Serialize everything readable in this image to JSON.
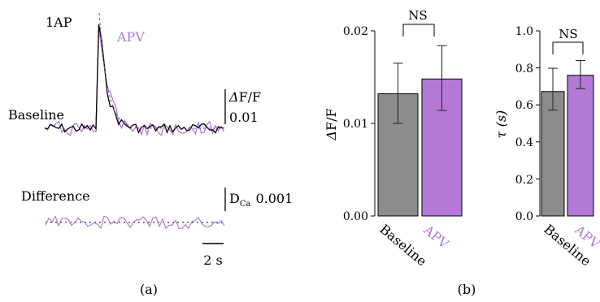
{
  "colors": {
    "baseline": "#000000",
    "apv": "#b27ad6",
    "bar_baseline": "#8c8c8c",
    "bar_apv": "#b27ad6"
  },
  "panel_a": {
    "label": "(a)",
    "trace_title": "1AP",
    "apv_label": "APV",
    "baseline_label": "Baseline",
    "difference_label": "Difference",
    "df_scale": {
      "prefix": "Δ",
      "text": "F/F",
      "value": "0.01"
    },
    "dca_scale": {
      "main": "D",
      "sub": "Ca",
      "value": "0.001"
    },
    "time_scale": "2 s"
  },
  "panel_b": {
    "label": "(b)"
  },
  "chart_data": [
    {
      "type": "bar",
      "ylabel_prefix": "Δ",
      "ylabel": "F/F",
      "categories": [
        "Baseline",
        "APV"
      ],
      "values": [
        0.0132,
        0.0148
      ],
      "errors": [
        [
          0.01,
          0.0165
        ],
        [
          0.0114,
          0.0184
        ]
      ],
      "ylim": [
        0,
        0.02
      ],
      "ticks": [
        "0.00",
        "0.01",
        "0.02"
      ],
      "significance": "NS"
    },
    {
      "type": "bar",
      "ylabel": "τ (s)",
      "categories": [
        "Baseline",
        "APV"
      ],
      "values": [
        0.672,
        0.76
      ],
      "errors": [
        [
          0.572,
          0.798
        ],
        [
          0.688,
          0.84
        ]
      ],
      "ylim": [
        0,
        1.0
      ],
      "ticks": [
        "0.0",
        "0.2",
        "0.4",
        "0.6",
        "0.8",
        "1.0"
      ],
      "significance": "NS"
    }
  ]
}
